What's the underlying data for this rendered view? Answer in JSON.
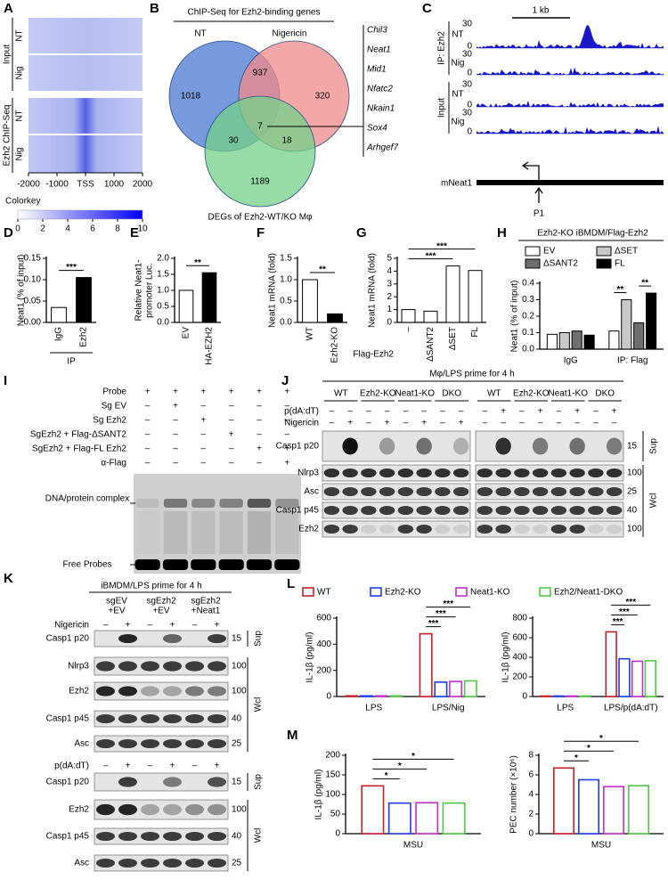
{
  "panel_labels": [
    "A",
    "B",
    "C",
    "D",
    "E",
    "F",
    "G",
    "H",
    "I",
    "J",
    "K",
    "L",
    "M"
  ],
  "heatmap": {
    "group_labels": [
      "Input",
      "Ezh2 ChIP-Seq"
    ],
    "row_labels": [
      "NT",
      "Nig",
      "NT",
      "Nig"
    ],
    "xticks": [
      -2000,
      -1000,
      {
        "value": 0,
        "label": "TSS"
      },
      1000,
      2000
    ],
    "colorkey_title": "Colorkey",
    "colorkey_ticks": [
      0,
      2,
      4,
      6,
      8,
      10
    ]
  },
  "venn": {
    "title": "ChIP-Seq for Ezh2-binding genes",
    "set_labels": [
      "NT",
      "Nigericin"
    ],
    "counts": [
      1018,
      937,
      320,
      7,
      30,
      18,
      1189
    ],
    "caption": "DEGs of Ezh2-WT/KO Mφ",
    "set_colors": [
      "#4a78d0",
      "#f08a8a",
      "#74d08a"
    ],
    "genes": [
      "Chil3",
      "Neat1",
      "Mid1",
      "Nfatc2",
      "Nkain1",
      "Sox4",
      "Arhgef7"
    ],
    "gene_colors": [
      "#000000",
      "#d01010",
      "#000000",
      "#000000",
      "#000000",
      "#000000",
      "#000000"
    ]
  },
  "tracks": {
    "scale": "1 kb",
    "group_labels": [
      "IP: Ezh2",
      "Input"
    ],
    "row_labels": [
      "NT",
      "Nig",
      "NT",
      "Nig"
    ],
    "ylim": [
      0,
      30
    ],
    "gene": "mNeat1",
    "promoter": "P1",
    "color": "#1818c8"
  },
  "emsa": {
    "rows": [
      {
        "label": "Probe",
        "signs": [
          "+",
          "+",
          "+",
          "+",
          "+",
          "+"
        ]
      },
      {
        "label": "Sg EV",
        "signs": [
          "–",
          "+",
          "–",
          "–",
          "–",
          "–"
        ]
      },
      {
        "label": "Sg Ezh2",
        "signs": [
          "–",
          "–",
          "+",
          "–",
          "–",
          "–"
        ]
      },
      {
        "label": "SgEzh2 + Flag-ΔSANT2",
        "signs": [
          "–",
          "–",
          "–",
          "+",
          "–",
          "–"
        ]
      },
      {
        "label": "SgEzh2 + Flag-FL Ezh2",
        "signs": [
          "–",
          "–",
          "–",
          "–",
          "+",
          "+"
        ]
      },
      {
        "label": "α-Flag",
        "signs": [
          "–",
          "–",
          "–",
          "–",
          "–",
          "+"
        ]
      }
    ],
    "bands": [
      "DNA/protein complex",
      "Free Probes"
    ]
  },
  "blot_J": {
    "title": "Mφ/LPS prime for 4 h",
    "groups": [
      "WT",
      "Ezh2-KO",
      "Neat1-KO",
      "DKO",
      "WT",
      "Ezh2-KO",
      "Neat1-KO",
      "DKO"
    ],
    "treatments": [
      {
        "label": "p(dA:dT)",
        "signs": [
          "–",
          "–",
          "–",
          "–",
          "–",
          "–",
          "–",
          "–",
          "–",
          "+",
          "–",
          "+",
          "–",
          "+",
          "–",
          "+"
        ]
      },
      {
        "label": "Nigericin",
        "signs": [
          "–",
          "+",
          "–",
          "+",
          "–",
          "+",
          "–",
          "+",
          "–",
          "–",
          "–",
          "–",
          "–",
          "–",
          "–",
          "–"
        ]
      }
    ],
    "blots": [
      {
        "name": "Casp1 p20",
        "marker": 15
      },
      {
        "name": "Nlrp3",
        "marker": 100
      },
      {
        "name": "Asc",
        "marker": 25
      },
      {
        "name": "Casp1 p45",
        "marker": 40
      },
      {
        "name": "Ezh2",
        "marker": 100
      }
    ],
    "fractions": [
      "Sup",
      "Wcl"
    ]
  },
  "blot_K": {
    "title": "iBMDM/LPS prime for 4 h",
    "groups": [
      [
        "sgEV",
        "+EV"
      ],
      [
        "sgEzh2",
        "+EV"
      ],
      [
        "sgEzh2",
        "+Neat1"
      ]
    ],
    "sections": [
      {
        "treatment": "Nigericin",
        "signs": [
          "–",
          "+",
          "–",
          "+",
          "–",
          "+"
        ],
        "blots": [
          {
            "name": "Casp1 p20",
            "marker": 15
          },
          {
            "name": "Nlrp3",
            "marker": 100
          },
          {
            "name": "Ezh2",
            "marker": 100
          },
          {
            "name": "Casp1 p45",
            "marker": 40
          },
          {
            "name": "Asc",
            "marker": 25
          }
        ],
        "fractions": [
          "Sup",
          "Wcl"
        ]
      },
      {
        "treatment": "p(dA:dT)",
        "signs": [
          "–",
          "+",
          "–",
          "+",
          "–",
          "+"
        ],
        "blots": [
          {
            "name": "Casp1 p20",
            "marker": 15
          },
          {
            "name": "Ezh2",
            "marker": 100
          },
          {
            "name": "Casp1 p45",
            "marker": 40
          },
          {
            "name": "Asc",
            "marker": 25
          }
        ],
        "fractions": [
          "Sup",
          "Wcl"
        ]
      }
    ]
  },
  "chart_data": [
    {
      "type": "bar",
      "ylabel": [
        "Neat1 (% of input)"
      ],
      "xlabel": "IP",
      "categories": [
        "IgG",
        "Ezh2"
      ],
      "values": [
        0.035,
        0.105
      ],
      "colors": [
        "#ffffff",
        "#000000"
      ],
      "ylim": [
        0,
        0.15
      ],
      "yticks": [
        {
          "value": 0,
          "label": "0.00"
        },
        0.05,
        {
          "value": 0.1,
          "label": "0.10"
        },
        0.15
      ],
      "annotations": [
        "***"
      ]
    },
    {
      "type": "bar",
      "ylabel": [
        "Relative Neat1-",
        "promoter Luc."
      ],
      "categories": [
        "EV",
        "HA-EZH2"
      ],
      "values": [
        1.0,
        1.55
      ],
      "colors": [
        "#ffffff",
        "#000000"
      ],
      "ylim": [
        0,
        2
      ],
      "yticks": [
        {
          "value": 0,
          "label": "0.0"
        },
        0.5,
        {
          "value": 1,
          "label": "1.0"
        },
        1.5,
        {
          "value": 2,
          "label": "2.0"
        }
      ],
      "annotations": [
        "**"
      ]
    },
    {
      "type": "bar",
      "ylabel": [
        "Neat1 mRNA (fold)"
      ],
      "categories": [
        "WT",
        "Ezh2-KO"
      ],
      "values": [
        1.0,
        0.2
      ],
      "colors": [
        "#ffffff",
        "#000000"
      ],
      "ylim": [
        0,
        1.5
      ],
      "yticks": [
        {
          "value": 0,
          "label": "0.0"
        },
        0.5,
        {
          "value": 1,
          "label": "1.0"
        },
        1.5
      ],
      "annotations": [
        "**"
      ]
    },
    {
      "type": "bar",
      "ylabel": [
        "Neat1 mRNA (fold)"
      ],
      "xlabel": "Flag-Ezh2",
      "categories": [
        "–",
        "ΔSANT2",
        "ΔSET",
        "FL"
      ],
      "values": [
        1.0,
        0.88,
        4.4,
        4.05
      ],
      "colors": [
        "#ffffff",
        "#ffffff",
        "#ffffff",
        "#ffffff"
      ],
      "ylim": [
        0,
        5
      ],
      "yticks": [
        0,
        1,
        2,
        3,
        4,
        5
      ],
      "annotations": [
        "***",
        "***"
      ]
    },
    {
      "type": "bar",
      "title": "Ezh2-KO iBMDM/Flag-Ezh2",
      "ylabel": [
        "Neat1 (% of input)"
      ],
      "categories": [
        "IgG",
        "IP: Flag"
      ],
      "series": [
        {
          "name": "EV",
          "color": "#ffffff",
          "values": [
            0.09,
            0.11
          ]
        },
        {
          "name": "ΔSET",
          "color": "#c8c8c8",
          "values": [
            0.1,
            0.3
          ]
        },
        {
          "name": "ΔSANT2",
          "color": "#6e6e6e",
          "values": [
            0.11,
            0.16
          ]
        },
        {
          "name": "FL",
          "color": "#000000",
          "values": [
            0.085,
            0.34
          ]
        }
      ],
      "ylim": [
        0,
        0.4
      ],
      "yticks": [
        {
          "value": 0,
          "label": "0.0"
        },
        0.1,
        0.2,
        0.3,
        0.4
      ],
      "annotations": [
        "**",
        "**"
      ]
    },
    {
      "type": "bar",
      "bar_style": "outline",
      "ylabel": [
        "IL-1β (pg/ml)"
      ],
      "categories": [
        "LPS",
        "LPS/Nig"
      ],
      "series": [
        {
          "name": "WT",
          "color": "#c81e28",
          "values": [
            5,
            480
          ]
        },
        {
          "name": "Ezh2-KO",
          "color": "#1e3ceb",
          "values": [
            5,
            110
          ]
        },
        {
          "name": "Neat1-KO",
          "color": "#c030c8",
          "values": [
            5,
            115
          ]
        },
        {
          "name": "Ezh2/Neat1-DKO",
          "color": "#50c846",
          "values": [
            5,
            120
          ]
        }
      ],
      "ylim": [
        0,
        600
      ],
      "yticks": [
        0,
        200,
        400,
        600
      ],
      "annotations": [
        "***",
        "***",
        "***"
      ]
    },
    {
      "type": "bar",
      "bar_style": "outline",
      "ylabel": [
        "IL-1β (pg/ml)"
      ],
      "categories": [
        "LPS",
        "LPS/p(dA:dT)"
      ],
      "series": [
        {
          "color": "#c81e28",
          "values": [
            5,
            660
          ]
        },
        {
          "color": "#1e3ceb",
          "values": [
            5,
            385
          ]
        },
        {
          "color": "#c030c8",
          "values": [
            5,
            360
          ]
        },
        {
          "color": "#50c846",
          "values": [
            5,
            365
          ]
        }
      ],
      "ylim": [
        0,
        800
      ],
      "yticks": [
        0,
        200,
        400,
        600,
        800
      ],
      "annotations": [
        "***",
        "***",
        "***"
      ]
    },
    {
      "type": "bar",
      "bar_style": "outline",
      "ylabel": [
        "IL-1β (pg/ml)"
      ],
      "categories": [
        "MSU"
      ],
      "series": [
        {
          "color": "#c81e28",
          "values": [
            122
          ]
        },
        {
          "color": "#1e3ceb",
          "values": [
            78
          ]
        },
        {
          "color": "#c030c8",
          "values": [
            79
          ]
        },
        {
          "color": "#50c846",
          "values": [
            78
          ]
        }
      ],
      "ylim": [
        0,
        200
      ],
      "yticks": [
        0,
        50,
        100,
        150,
        200
      ],
      "annotations": [
        "*",
        "*",
        "*"
      ]
    },
    {
      "type": "bar",
      "bar_style": "outline",
      "ylabel": [
        "PEC number (×10⁶)"
      ],
      "categories": [
        "MSU"
      ],
      "series": [
        {
          "color": "#c81e28",
          "values": [
            6.7
          ]
        },
        {
          "color": "#1e3ceb",
          "values": [
            5.5
          ]
        },
        {
          "color": "#c030c8",
          "values": [
            4.8
          ]
        },
        {
          "color": "#50c846",
          "values": [
            4.9
          ]
        }
      ],
      "ylim": [
        0,
        8
      ],
      "yticks": [
        0,
        2,
        4,
        6,
        8
      ],
      "annotations": [
        "*",
        "*",
        "*"
      ]
    }
  ]
}
